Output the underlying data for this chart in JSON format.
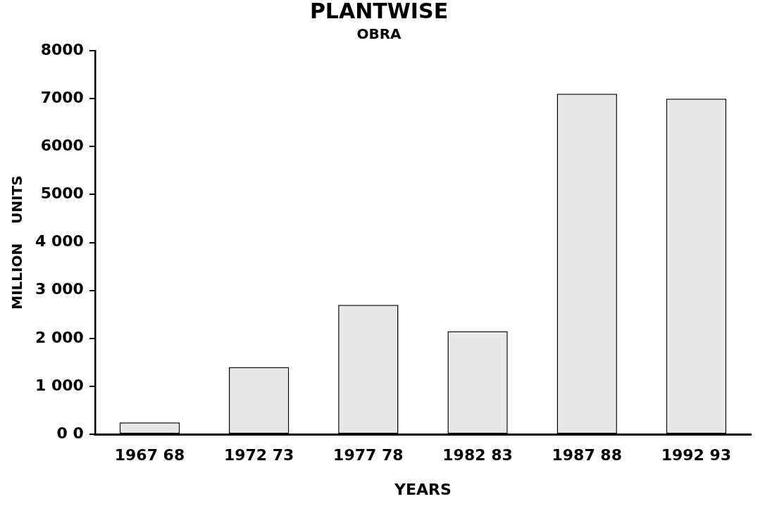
{
  "chart_data": {
    "type": "bar",
    "title": "PLANTWISE",
    "subtitle": "OBRA",
    "xlabel": "YEARS",
    "ylabel": "MILLION    UNITS",
    "categories": [
      "1967 68",
      "1972 73",
      "1977 78",
      "1982 83",
      "1987 88",
      "1992 93"
    ],
    "values": [
      250,
      1400,
      2700,
      2150,
      7100,
      7000
    ],
    "color": "#e8e8e8",
    "ylim": [
      0,
      8000
    ],
    "yticks": [
      {
        "value": 0,
        "label": "0 0"
      },
      {
        "value": 1000,
        "label": "1 000"
      },
      {
        "value": 2000,
        "label": "2 000"
      },
      {
        "value": 3000,
        "label": "3 000"
      },
      {
        "value": 4000,
        "label": "4 000"
      },
      {
        "value": 5000,
        "label": "5000"
      },
      {
        "value": 6000,
        "label": "6000"
      },
      {
        "value": 7000,
        "label": "7000"
      },
      {
        "value": 8000,
        "label": "8000"
      }
    ],
    "grid": false,
    "legend": false
  }
}
